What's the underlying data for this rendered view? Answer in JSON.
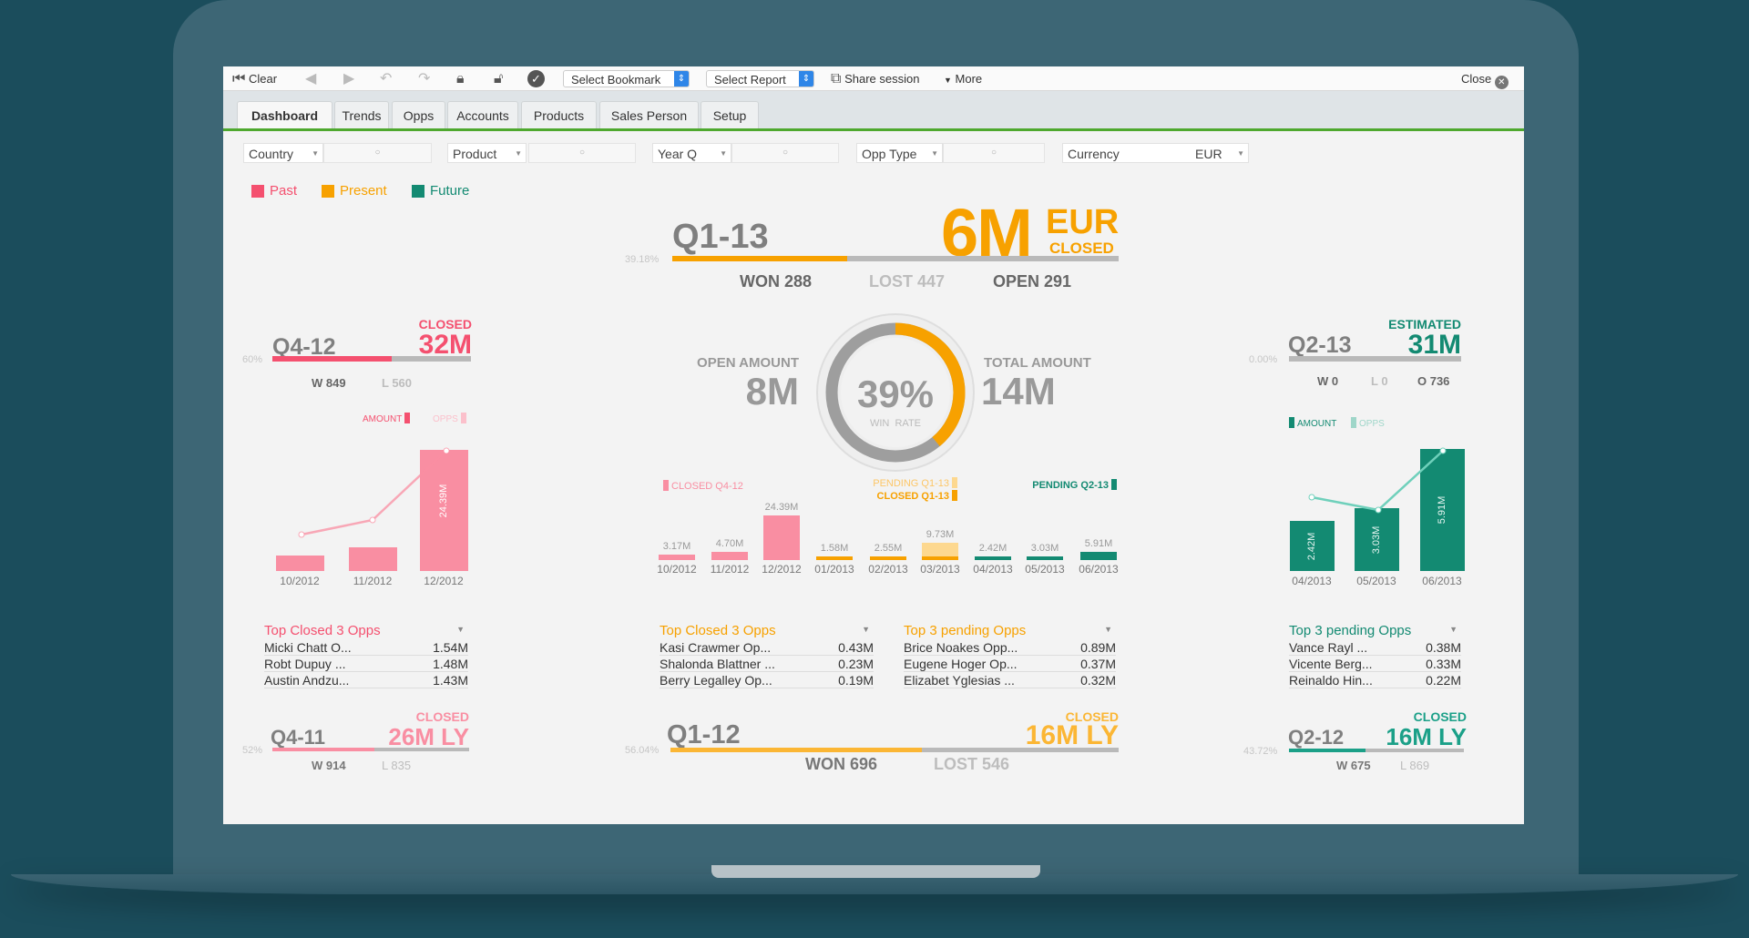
{
  "toolbar": {
    "clear": "Clear",
    "bookmark": "Select Bookmark",
    "report": "Select Report",
    "share": "Share session",
    "more": "More",
    "close": "Close"
  },
  "tabs": [
    "Dashboard",
    "Trends",
    "Opps",
    "Accounts",
    "Products",
    "Sales Person",
    "Setup"
  ],
  "filters": {
    "country": "Country",
    "product": "Product",
    "year_q": "Year Q",
    "opp_type": "Opp Type",
    "currency": "Currency",
    "currency_value": "EUR"
  },
  "legend": {
    "past": "Past",
    "present": "Present",
    "future": "Future"
  },
  "colors": {
    "past": "#f4506f",
    "past_bar": "#f98ea2",
    "present": "#f7a100",
    "present_light": "#fdd88f",
    "future": "#138a72",
    "future_line": "#6fd0bb",
    "green_rule": "#4ea82e"
  },
  "current": {
    "quarter": "Q1-13",
    "amount": "6M",
    "currency": "EUR",
    "status": "CLOSED",
    "win_pct_label": "39.18%",
    "win_fraction": 0.3918,
    "won": "WON 288",
    "lost": "LOST 447",
    "open": "OPEN 291",
    "open_amount_label": "OPEN AMOUNT",
    "open_amount": "8M",
    "total_amount_label": "TOTAL AMOUNT",
    "total_amount": "14M",
    "win_rate": "39%",
    "win_rate_label": "WIN  RATE",
    "win_rate_value": 0.39
  },
  "previous": {
    "quarter": "Q4-12",
    "status": "CLOSED",
    "amount": "32M",
    "pct_label": "60%",
    "fraction": 0.6,
    "won": "W 849",
    "lost": "L 560",
    "amount_legend": "AMOUNT",
    "opps_legend": "OPPS"
  },
  "next": {
    "quarter": "Q2-13",
    "status": "ESTIMATED",
    "amount": "31M",
    "pct_label": "0.00%",
    "fraction": 0,
    "won": "W 0",
    "lost": "L 0",
    "open": "O 736",
    "amount_legend": "AMOUNT",
    "opps_legend": "OPPS"
  },
  "chart_data": [
    {
      "type": "bar",
      "categories": [
        "10/2012",
        "11/2012",
        "12/2012"
      ],
      "values": [
        3.17,
        4.7,
        24.39
      ],
      "value_labels": [
        "",
        "",
        "24.39M"
      ],
      "series_name": "AMOUNT",
      "line_series_name": "OPPS"
    },
    {
      "type": "bar",
      "categories": [
        "10/2012",
        "11/2012",
        "12/2012",
        "01/2013",
        "02/2013",
        "03/2013",
        "04/2013",
        "05/2013",
        "06/2013"
      ],
      "values": [
        3.17,
        4.7,
        24.39,
        1.58,
        2.55,
        9.73,
        2.42,
        3.03,
        5.91
      ],
      "value_labels": [
        "3.17M",
        "4.70M",
        "24.39M",
        "1.58M",
        "2.55M",
        "9.73M",
        "2.42M",
        "3.03M",
        "5.91M"
      ],
      "groups": [
        "CLOSED Q4-12",
        "CLOSED Q4-12",
        "CLOSED Q4-12",
        "CLOSED Q1-13",
        "CLOSED Q1-13",
        "PENDING Q1-13",
        "PENDING Q2-13",
        "PENDING Q2-13",
        "PENDING Q2-13"
      ],
      "legend": [
        "CLOSED Q4-12",
        "PENDING Q1-13",
        "CLOSED Q1-13",
        "PENDING Q2-13"
      ]
    },
    {
      "type": "bar",
      "categories": [
        "04/2013",
        "05/2013",
        "06/2013"
      ],
      "values": [
        2.42,
        3.03,
        5.91
      ],
      "value_labels": [
        "2.42M",
        "3.03M",
        "5.91M"
      ],
      "series_name": "AMOUNT",
      "line_series_name": "OPPS"
    }
  ],
  "lists": {
    "left": {
      "title": "Top Closed 3 Opps",
      "rows": [
        [
          "Micki  Chatt O...",
          "1.54M"
        ],
        [
          "Robt  Dupuy ...",
          "1.48M"
        ],
        [
          "Austin  Andzu...",
          "1.43M"
        ]
      ]
    },
    "mid_closed": {
      "title": "Top Closed 3 Opps",
      "rows": [
        [
          "Kasi  Crawmer Op...",
          "0.43M"
        ],
        [
          "Shalonda  Blattner ...",
          "0.23M"
        ],
        [
          "Berry  Legalley Op...",
          "0.19M"
        ]
      ]
    },
    "mid_pending": {
      "title": "Top 3 pending Opps",
      "rows": [
        [
          "Brice  Noakes Opp...",
          "0.89M"
        ],
        [
          "Eugene  Hoger Op...",
          "0.37M"
        ],
        [
          "Elizabet  Yglesias ...",
          "0.32M"
        ]
      ]
    },
    "right": {
      "title": "Top 3 pending Opps",
      "rows": [
        [
          "Vance  Rayl ...",
          "0.38M"
        ],
        [
          "Vicente  Berg...",
          "0.33M"
        ],
        [
          "Reinaldo  Hin...",
          "0.22M"
        ]
      ]
    }
  },
  "ly": {
    "left": {
      "quarter": "Q4-11",
      "status": "CLOSED",
      "amount": "26M LY",
      "pct_label": "52%",
      "fraction": 0.52,
      "won": "W 914",
      "lost": "L 835"
    },
    "mid": {
      "quarter": "Q1-12",
      "status": "CLOSED",
      "amount": "16M LY",
      "pct_label": "56.04%",
      "fraction": 0.5604,
      "won": "WON 696",
      "lost": "LOST 546"
    },
    "right": {
      "quarter": "Q2-12",
      "status": "CLOSED",
      "amount": "16M LY",
      "pct_label": "43.72%",
      "fraction": 0.4372,
      "won": "W 675",
      "lost": "L 869"
    }
  }
}
